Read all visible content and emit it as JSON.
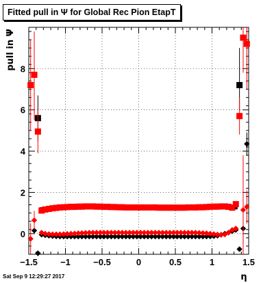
{
  "timestamp": "Sat Sep  9 12:29:27 2017",
  "chart_data": {
    "type": "scatter",
    "title": "Fitted pull in Ψ  for Global Rec Pion EtapT",
    "xlabel": "η",
    "ylabel": "pull in  Ψ",
    "xlim": [
      -1.5,
      1.5
    ],
    "ylim": [
      -1.0,
      10.0
    ],
    "x_ticks": [
      -1.5,
      -1,
      -0.5,
      0,
      0.5,
      1,
      1.5
    ],
    "x_tick_labels": [
      "−1.5",
      "−1",
      "−0.5",
      "0",
      "0.5",
      "1",
      "1.5"
    ],
    "y_ticks": [
      0,
      2,
      4,
      6,
      8
    ],
    "y_tick_labels": [
      "0",
      "2",
      "4",
      "6",
      "8"
    ],
    "grid": true,
    "colors": {
      "black": "#000000",
      "red": "#ff0000"
    },
    "series": [
      {
        "marker": "square",
        "color": "#000000",
        "points": [
          {
            "x": -1.375,
            "y": 5.6,
            "ylo": 4.5,
            "yhi": 6.7
          },
          {
            "x": 1.375,
            "y": 7.2,
            "ylo": 6.0,
            "yhi": 9.0
          }
        ]
      },
      {
        "marker": "square",
        "color": "#ff0000",
        "points": [
          {
            "x": -1.475,
            "y": 7.2,
            "ylo": 5.0,
            "yhi": 9.4
          },
          {
            "x": -1.425,
            "y": 7.7,
            "ylo": 5.5,
            "yhi": 9.8
          },
          {
            "x": -1.375,
            "y": 4.95,
            "ylo": 3.9,
            "yhi": 6.0
          },
          {
            "x": 1.375,
            "y": 5.7,
            "ylo": 4.8,
            "yhi": 6.6
          },
          {
            "x": 1.425,
            "y": 9.5,
            "ylo": 7.8,
            "yhi": 10.0
          },
          {
            "x": 1.475,
            "y": 9.2,
            "ylo": 7.0,
            "yhi": 10.0
          }
        ]
      },
      {
        "marker": "diamond",
        "color": "#000000",
        "points": [
          {
            "x": -1.425,
            "y": 0.15
          },
          {
            "x": -1.375,
            "y": -0.95
          },
          {
            "x": 1.375,
            "y": -0.75
          },
          {
            "x": 1.425,
            "y": 0.25,
            "ylo": -0.5,
            "yhi": 1.0
          },
          {
            "x": 1.475,
            "y": 4.35,
            "ylo": 3.8,
            "yhi": 4.9
          }
        ]
      },
      {
        "marker": "diamond",
        "color": "#ff0000",
        "points": [
          {
            "x": -1.475,
            "y": -0.25,
            "ylo": -1.0,
            "yhi": 0.5
          },
          {
            "x": -1.425,
            "y": 0.65,
            "ylo": 0.2,
            "yhi": 1.1
          },
          {
            "x": 1.425,
            "y": 1.15,
            "ylo": -1.0,
            "yhi": 3.8
          },
          {
            "x": 1.475,
            "y": 1.3,
            "ylo": 0.5,
            "yhi": 2.1
          }
        ]
      },
      {
        "marker": "square",
        "color": "#000000",
        "size": "small",
        "x_start": -1.325,
        "x_step": 0.05,
        "y": [
          1.2,
          1.22,
          1.24,
          1.25,
          1.26,
          1.27,
          1.28,
          1.29,
          1.3,
          1.3,
          1.3,
          1.3,
          1.3,
          1.3,
          1.29,
          1.28,
          1.27,
          1.26,
          1.25,
          1.24,
          1.23,
          1.23,
          1.22,
          1.22,
          1.22,
          1.22,
          1.22,
          1.22,
          1.22,
          1.22,
          1.22,
          1.22,
          1.22,
          1.22,
          1.22,
          1.22,
          1.22,
          1.22,
          1.22,
          1.22,
          1.23,
          1.23,
          1.23,
          1.24,
          1.24,
          1.25,
          1.26,
          1.28,
          1.28,
          1.28,
          1.27,
          1.26,
          1.26,
          1.26
        ]
      },
      {
        "marker": "square",
        "color": "#ff0000",
        "x_start": -1.325,
        "x_step": 0.05,
        "y": [
          1.12,
          1.17,
          1.2,
          1.23,
          1.25,
          1.27,
          1.28,
          1.29,
          1.3,
          1.3,
          1.31,
          1.31,
          1.32,
          1.32,
          1.32,
          1.31,
          1.31,
          1.3,
          1.3,
          1.29,
          1.29,
          1.28,
          1.28,
          1.27,
          1.27,
          1.27,
          1.27,
          1.27,
          1.27,
          1.27,
          1.27,
          1.27,
          1.26,
          1.26,
          1.26,
          1.26,
          1.26,
          1.26,
          1.26,
          1.26,
          1.27,
          1.27,
          1.27,
          1.28,
          1.28,
          1.29,
          1.3,
          1.31,
          1.31,
          1.32,
          1.32,
          1.3,
          1.26,
          1.43
        ]
      },
      {
        "marker": "diamond",
        "color": "#000000",
        "x_start": -1.325,
        "x_step": 0.05,
        "y": [
          -0.05,
          -0.08,
          -0.1,
          -0.12,
          -0.13,
          -0.14,
          -0.14,
          -0.14,
          -0.14,
          -0.14,
          -0.14,
          -0.14,
          -0.14,
          -0.14,
          -0.14,
          -0.14,
          -0.14,
          -0.14,
          -0.14,
          -0.14,
          -0.14,
          -0.14,
          -0.14,
          -0.14,
          -0.14,
          -0.14,
          -0.14,
          -0.14,
          -0.14,
          -0.14,
          -0.14,
          -0.14,
          -0.14,
          -0.14,
          -0.14,
          -0.14,
          -0.14,
          -0.14,
          -0.14,
          -0.14,
          -0.14,
          -0.14,
          -0.14,
          -0.14,
          -0.14,
          -0.14,
          -0.13,
          -0.12,
          -0.1,
          -0.05,
          0.0,
          0.05,
          0.12,
          0.18
        ]
      },
      {
        "marker": "diamond",
        "color": "#ff0000",
        "x_start": -1.325,
        "x_step": 0.05,
        "y": [
          0.05,
          0.0,
          -0.02,
          -0.03,
          -0.03,
          -0.03,
          -0.02,
          -0.01,
          0.0,
          0.01,
          0.02,
          0.03,
          0.04,
          0.05,
          0.05,
          0.05,
          0.05,
          0.05,
          0.05,
          0.05,
          0.05,
          0.05,
          0.05,
          0.05,
          0.05,
          0.05,
          0.05,
          0.05,
          0.05,
          0.05,
          0.05,
          0.05,
          0.05,
          0.05,
          0.05,
          0.05,
          0.05,
          0.05,
          0.05,
          0.05,
          0.05,
          0.05,
          0.05,
          0.04,
          0.03,
          0.02,
          0.0,
          -0.02,
          -0.04,
          -0.06,
          -0.04,
          0.05,
          0.18,
          0.25
        ]
      }
    ]
  }
}
